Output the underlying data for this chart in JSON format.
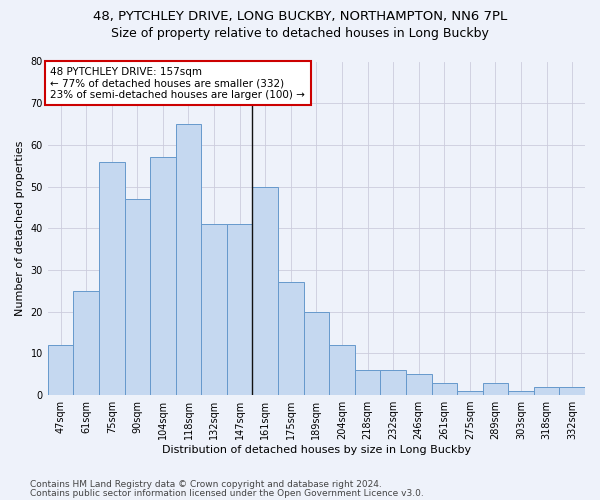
{
  "title_line1": "48, PYTCHLEY DRIVE, LONG BUCKBY, NORTHAMPTON, NN6 7PL",
  "title_line2": "Size of property relative to detached houses in Long Buckby",
  "xlabel": "Distribution of detached houses by size in Long Buckby",
  "ylabel": "Number of detached properties",
  "categories": [
    "47sqm",
    "61sqm",
    "75sqm",
    "90sqm",
    "104sqm",
    "118sqm",
    "132sqm",
    "147sqm",
    "161sqm",
    "175sqm",
    "189sqm",
    "204sqm",
    "218sqm",
    "232sqm",
    "246sqm",
    "261sqm",
    "275sqm",
    "289sqm",
    "303sqm",
    "318sqm",
    "332sqm"
  ],
  "values": [
    12,
    25,
    56,
    47,
    57,
    65,
    41,
    41,
    50,
    27,
    20,
    12,
    6,
    6,
    5,
    3,
    1,
    3,
    1,
    2,
    2
  ],
  "bar_color": "#c5d8f0",
  "bar_edge_color": "#6699cc",
  "vline_x_index": 8,
  "vline_color": "#111111",
  "annotation_line1": "48 PYTCHLEY DRIVE: 157sqm",
  "annotation_line2": "← 77% of detached houses are smaller (332)",
  "annotation_line3": "23% of semi-detached houses are larger (100) →",
  "annotation_box_color": "#ffffff",
  "annotation_box_edge": "#cc0000",
  "ylim": [
    0,
    80
  ],
  "yticks": [
    0,
    10,
    20,
    30,
    40,
    50,
    60,
    70,
    80
  ],
  "grid_color": "#ccccdd",
  "background_color": "#eef2fa",
  "footer_line1": "Contains HM Land Registry data © Crown copyright and database right 2024.",
  "footer_line2": "Contains public sector information licensed under the Open Government Licence v3.0.",
  "title_fontsize": 9.5,
  "subtitle_fontsize": 9,
  "axis_label_fontsize": 8,
  "tick_fontsize": 7,
  "annotation_fontsize": 7.5,
  "footer_fontsize": 6.5
}
